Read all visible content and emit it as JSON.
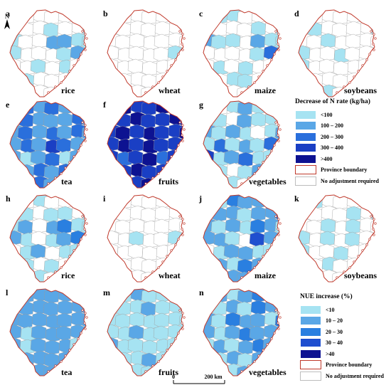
{
  "north_label": "N",
  "panels": [
    {
      "letter": "a",
      "crop": "rice",
      "set": "n",
      "row": 0,
      "col": 0,
      "fills": [
        1,
        0,
        0,
        0,
        0,
        0,
        0,
        1,
        0,
        0,
        1,
        0,
        0,
        1,
        1,
        0,
        0,
        2,
        2,
        1,
        1,
        1,
        0,
        0,
        0,
        1,
        2,
        1,
        0,
        0,
        1,
        0,
        1,
        0,
        1,
        0
      ]
    },
    {
      "letter": "b",
      "crop": "wheat",
      "set": "n",
      "row": 0,
      "col": 1,
      "fills": [
        0,
        0,
        0,
        0,
        0,
        0,
        0,
        0,
        0,
        0,
        0,
        0,
        0,
        0,
        0,
        0,
        0,
        0,
        0,
        0,
        0,
        0,
        0,
        0,
        0,
        0,
        1,
        0,
        0,
        0,
        0,
        0,
        0,
        0,
        0,
        0
      ]
    },
    {
      "letter": "c",
      "crop": "maize",
      "set": "n",
      "row": 0,
      "col": 2,
      "fills": [
        0,
        1,
        1,
        0,
        0,
        1,
        0,
        1,
        0,
        0,
        0,
        1,
        0,
        1,
        2,
        1,
        1,
        0,
        2,
        1,
        1,
        0,
        0,
        0,
        0,
        1,
        3,
        2,
        0,
        1,
        0,
        1,
        0,
        0,
        0,
        0
      ]
    },
    {
      "letter": "d",
      "crop": "soybeans",
      "set": "n",
      "row": 0,
      "col": 3,
      "fills": [
        0,
        0,
        0,
        0,
        0,
        0,
        0,
        0,
        1,
        0,
        0,
        0,
        0,
        1,
        0,
        0,
        1,
        0,
        0,
        0,
        0,
        1,
        0,
        0,
        1,
        0,
        0,
        0,
        1,
        0,
        0,
        0,
        0,
        0,
        0,
        0
      ]
    },
    {
      "letter": "e",
      "crop": "tea",
      "set": "n",
      "row": 1,
      "col": 0,
      "fills": [
        2,
        3,
        2,
        3,
        2,
        2,
        3,
        2,
        3,
        2,
        2,
        2,
        3,
        2,
        2,
        3,
        2,
        3,
        2,
        3,
        2,
        2,
        3,
        2,
        4,
        3,
        2,
        3,
        2,
        1,
        2,
        3,
        1,
        2,
        2,
        1
      ]
    },
    {
      "letter": "f",
      "crop": "fruits",
      "set": "n",
      "row": 1,
      "col": 1,
      "fills": [
        4,
        5,
        4,
        4,
        5,
        4,
        5,
        4,
        4,
        5,
        4,
        4,
        5,
        4,
        4,
        5,
        4,
        5,
        4,
        4,
        5,
        4,
        5,
        4,
        5,
        4,
        4,
        5,
        4,
        3,
        4,
        5,
        3,
        4,
        4,
        3
      ]
    },
    {
      "letter": "g",
      "crop": "vegetables",
      "set": "n",
      "row": 1,
      "col": 2,
      "fills": [
        1,
        0,
        1,
        2,
        1,
        0,
        1,
        2,
        1,
        0,
        2,
        1,
        1,
        0,
        2,
        1,
        2,
        1,
        0,
        1,
        2,
        1,
        3,
        1,
        2,
        1,
        3,
        2,
        4,
        1,
        2,
        3,
        1,
        1,
        2,
        1
      ]
    },
    {
      "letter": "h",
      "crop": "rice",
      "set": "u",
      "row": 2,
      "col": 0,
      "fills": [
        1,
        0,
        1,
        0,
        0,
        1,
        1,
        0,
        1,
        0,
        1,
        1,
        0,
        1,
        1,
        2,
        0,
        2,
        3,
        1,
        1,
        2,
        1,
        0,
        1,
        2,
        3,
        1,
        0,
        1,
        2,
        0,
        1,
        1,
        0,
        0
      ]
    },
    {
      "letter": "i",
      "crop": "wheat",
      "set": "u",
      "row": 2,
      "col": 1,
      "fills": [
        0,
        0,
        0,
        0,
        0,
        0,
        0,
        0,
        0,
        0,
        0,
        0,
        0,
        0,
        0,
        0,
        0,
        0,
        0,
        0,
        0,
        0,
        0,
        1,
        0,
        0,
        1,
        0,
        0,
        0,
        0,
        0,
        0,
        0,
        0,
        0
      ]
    },
    {
      "letter": "j",
      "crop": "maize",
      "set": "u",
      "row": 2,
      "col": 2,
      "fills": [
        2,
        1,
        3,
        2,
        2,
        1,
        2,
        1,
        2,
        2,
        1,
        2,
        2,
        3,
        2,
        1,
        2,
        1,
        3,
        2,
        1,
        2,
        2,
        1,
        0,
        4,
        2,
        2,
        0,
        1,
        2,
        2,
        1,
        1,
        0,
        0
      ]
    },
    {
      "letter": "k",
      "crop": "soybeans",
      "set": "u",
      "row": 2,
      "col": 3,
      "fills": [
        0,
        1,
        0,
        0,
        0,
        0,
        1,
        0,
        0,
        0,
        0,
        1,
        0,
        1,
        0,
        0,
        1,
        0,
        1,
        0,
        0,
        1,
        0,
        1,
        0,
        1,
        0,
        0,
        1,
        0,
        0,
        1,
        0,
        0,
        0,
        0
      ]
    },
    {
      "letter": "l",
      "crop": "tea",
      "set": "u",
      "row": 3,
      "col": 0,
      "fills": [
        2,
        2,
        2,
        2,
        2,
        2,
        2,
        2,
        2,
        2,
        2,
        2,
        2,
        2,
        2,
        2,
        2,
        2,
        2,
        2,
        2,
        2,
        1,
        2,
        2,
        2,
        2,
        2,
        2,
        1,
        2,
        2,
        2,
        1,
        2,
        1
      ]
    },
    {
      "letter": "m",
      "crop": "fruits",
      "set": "u",
      "row": 3,
      "col": 1,
      "fills": [
        1,
        1,
        2,
        1,
        1,
        1,
        1,
        1,
        1,
        1,
        2,
        1,
        1,
        1,
        1,
        1,
        1,
        1,
        1,
        1,
        1,
        1,
        1,
        2,
        1,
        1,
        1,
        1,
        2,
        1,
        1,
        1,
        1,
        1,
        1,
        1
      ]
    },
    {
      "letter": "n",
      "crop": "vegetables",
      "set": "u",
      "row": 3,
      "col": 2,
      "fills": [
        1,
        2,
        1,
        2,
        3,
        1,
        2,
        2,
        1,
        2,
        1,
        3,
        2,
        1,
        2,
        1,
        3,
        2,
        2,
        1,
        3,
        2,
        1,
        2,
        3,
        2,
        2,
        3,
        1,
        2,
        1,
        2,
        3,
        2,
        2,
        1
      ]
    }
  ],
  "legend_n": {
    "title": "Decrease of N rate (kg/ha)",
    "items": [
      {
        "label": "<100",
        "color": "#a6e3f2"
      },
      {
        "label": "100 – 200",
        "color": "#5aa7e6"
      },
      {
        "label": "200 – 300",
        "color": "#2a6fdc"
      },
      {
        "label": "300 – 400",
        "color": "#1a3fc4"
      },
      {
        "label": ">400",
        "color": "#0d1291"
      },
      {
        "label": "Province boundary",
        "color": "#ffffff",
        "border": "#c0392b"
      },
      {
        "label": "No adjustment required",
        "color": "#ffffff",
        "border": "#bdbdbd"
      }
    ]
  },
  "legend_u": {
    "title": "NUE increase (%)",
    "items": [
      {
        "label": "<10",
        "color": "#a6e3f2"
      },
      {
        "label": "10 – 20",
        "color": "#5aa7e6"
      },
      {
        "label": "20 – 30",
        "color": "#2a7fe0"
      },
      {
        "label": "30 – 40",
        "color": "#1f4fcf"
      },
      {
        "label": ">40",
        "color": "#0d1291"
      },
      {
        "label": "Province boundary",
        "color": "#ffffff",
        "border": "#c0392b"
      },
      {
        "label": "No adjustment required",
        "color": "#ffffff",
        "border": "#bdbdbd"
      }
    ]
  },
  "palette_n": [
    "#ffffff",
    "#a6e3f2",
    "#5aa7e6",
    "#2a6fdc",
    "#1a3fc4",
    "#0d1291"
  ],
  "palette_u": [
    "#ffffff",
    "#a6e3f2",
    "#5aa7e6",
    "#2a7fe0",
    "#1f4fcf",
    "#0d1291"
  ],
  "boundary_color": "#c0392b",
  "county_line_color": "#9a9a9a",
  "scalebar": {
    "start_label": "0",
    "end_label": "200 km"
  }
}
